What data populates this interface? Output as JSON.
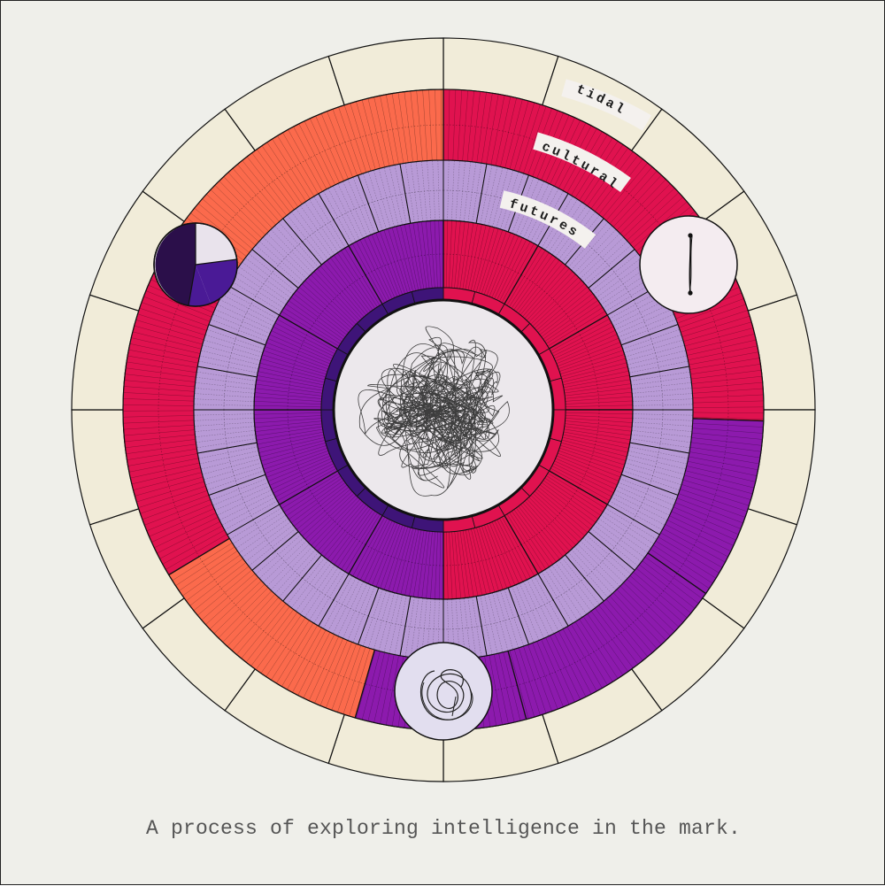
{
  "caption": "A process of exploring intelligence in the mark.",
  "ring_labels": [
    "tidal",
    "cultural",
    "futures"
  ],
  "colors": {
    "background": "#efefea",
    "outer_ring": "#f1ecd9",
    "crimson": "#e0124f",
    "coral": "#fb6a4c",
    "purple": "#8c1aad",
    "lavender": "#b89ad6",
    "deep_violet": "#3e1478",
    "center_disc": "#ece8ec",
    "scribble": "#1f1f1f"
  },
  "icons": [
    "pie-marker-icon",
    "line-marker-icon",
    "scribble-marker-icon",
    "central-scribble-icon"
  ]
}
